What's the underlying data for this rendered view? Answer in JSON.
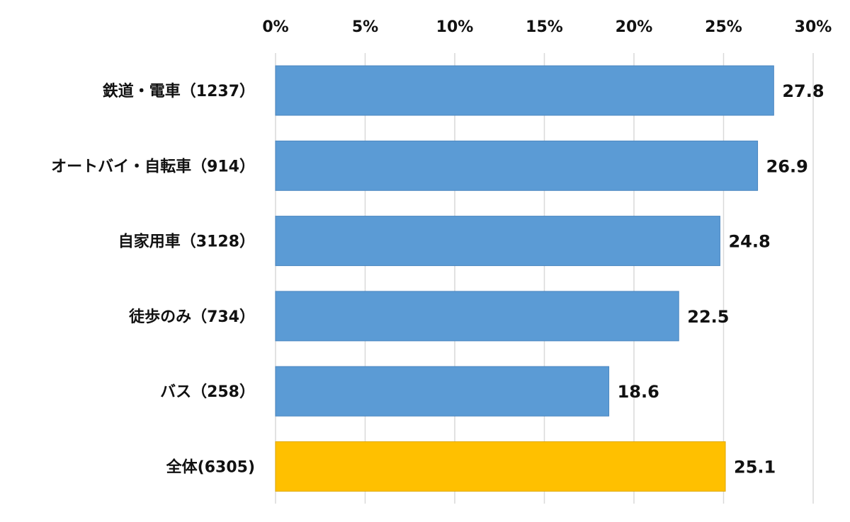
{
  "chart_data": {
    "type": "bar",
    "orientation": "horizontal",
    "categories": [
      "鉄道・電車（1237）",
      "オートバイ・自転車（914）",
      "自家用車（3128）",
      "徒歩のみ（734）",
      "バス（258）",
      "全体(6305)"
    ],
    "values": [
      27.8,
      26.9,
      24.8,
      22.5,
      18.6,
      25.1
    ],
    "value_labels": [
      "27.8",
      "26.9",
      "24.8",
      "22.5",
      "18.6",
      "25.1"
    ],
    "bar_colors": [
      "#5b9bd5",
      "#5b9bd5",
      "#5b9bd5",
      "#5b9bd5",
      "#5b9bd5",
      "#ffc000"
    ],
    "xlim": [
      0,
      30
    ],
    "x_ticks": [
      0,
      5,
      10,
      15,
      20,
      25,
      30
    ],
    "x_tick_labels": [
      "0%",
      "5%",
      "10%",
      "15%",
      "20%",
      "25%",
      "30%"
    ],
    "x_axis_position": "top",
    "grid": true,
    "legend": "none",
    "title": "",
    "xlabel": "",
    "ylabel": ""
  }
}
